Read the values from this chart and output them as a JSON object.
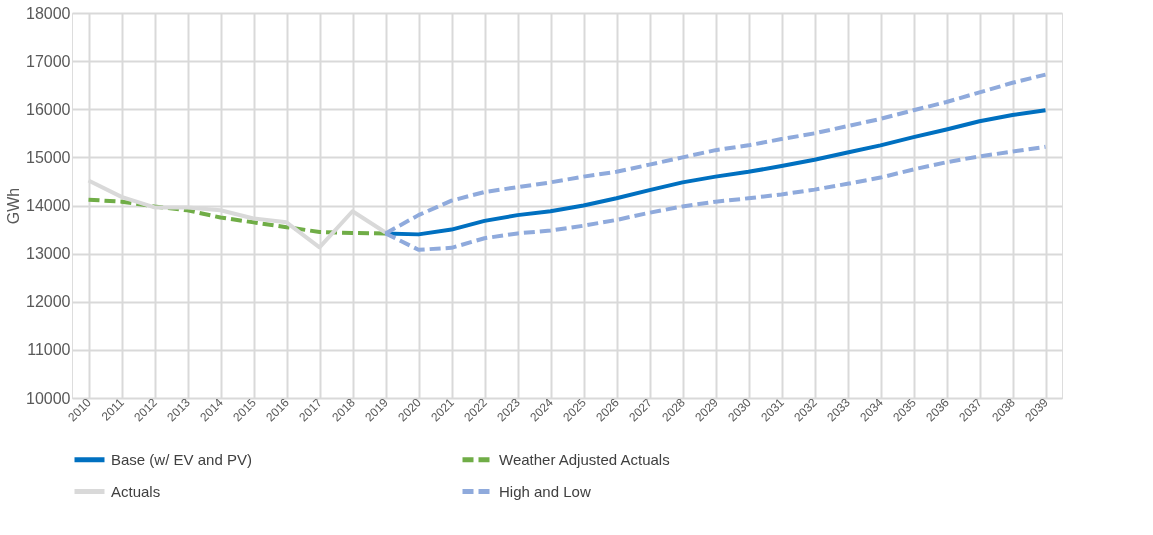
{
  "chart_data": {
    "type": "line",
    "ylabel": "GWh",
    "categories": [
      "2010",
      "2011",
      "2012",
      "2013",
      "2014",
      "2015",
      "2016",
      "2017",
      "2018",
      "2019",
      "2020",
      "2021",
      "2022",
      "2023",
      "2024",
      "2025",
      "2026",
      "2027",
      "2028",
      "2029",
      "2030",
      "2031",
      "2032",
      "2033",
      "2034",
      "2035",
      "2036",
      "2037",
      "2038",
      "2039"
    ],
    "ylim": [
      10000,
      18000
    ],
    "yticks": [
      10000,
      11000,
      12000,
      13000,
      14000,
      15000,
      16000,
      17000,
      18000
    ],
    "grid": true,
    "legend": "bottom",
    "marker": "none",
    "series": [
      {
        "name": "Base (w/ EV and PV)",
        "color": "#0070c0",
        "line_style": "solid",
        "values": [
          null,
          null,
          null,
          null,
          null,
          null,
          null,
          null,
          null,
          13420,
          13400,
          13500,
          13680,
          13800,
          13880,
          14000,
          14150,
          14320,
          14480,
          14600,
          14700,
          14820,
          14950,
          15100,
          15250,
          15420,
          15580,
          15750,
          15880,
          15980
        ]
      },
      {
        "name": "Weather Adjusted Actuals",
        "color": "#70ad47",
        "line_style": "dashed",
        "values": [
          14120,
          14080,
          13980,
          13900,
          13750,
          13650,
          13550,
          13450,
          13430,
          13420,
          null,
          null,
          null,
          null,
          null,
          null,
          null,
          null,
          null,
          null,
          null,
          null,
          null,
          null,
          null,
          null,
          null,
          null,
          null,
          null
        ]
      },
      {
        "name": "Actuals",
        "color": "#d9d9d9",
        "line_style": "solid",
        "values": [
          14520,
          14180,
          13960,
          13960,
          13900,
          13730,
          13650,
          13130,
          13880,
          13440,
          null,
          null,
          null,
          null,
          null,
          null,
          null,
          null,
          null,
          null,
          null,
          null,
          null,
          null,
          null,
          null,
          null,
          null,
          null,
          null
        ]
      },
      {
        "name": "High and Low",
        "color": "#8faadc",
        "line_style": "dashed",
        "values": [
          null,
          null,
          null,
          null,
          null,
          null,
          null,
          null,
          null,
          13420,
          13800,
          14100,
          14280,
          14380,
          14480,
          14600,
          14700,
          14850,
          15000,
          15150,
          15250,
          15380,
          15500,
          15650,
          15800,
          15980,
          16150,
          16350,
          16550,
          16720
        ]
      },
      {
        "color": "#8faadc",
        "line_style": "dashed",
        "values": [
          null,
          null,
          null,
          null,
          null,
          null,
          null,
          null,
          null,
          13420,
          13080,
          13120,
          13320,
          13420,
          13480,
          13580,
          13700,
          13850,
          13980,
          14080,
          14150,
          14230,
          14330,
          14450,
          14580,
          14750,
          14900,
          15020,
          15120,
          15220
        ]
      }
    ]
  }
}
